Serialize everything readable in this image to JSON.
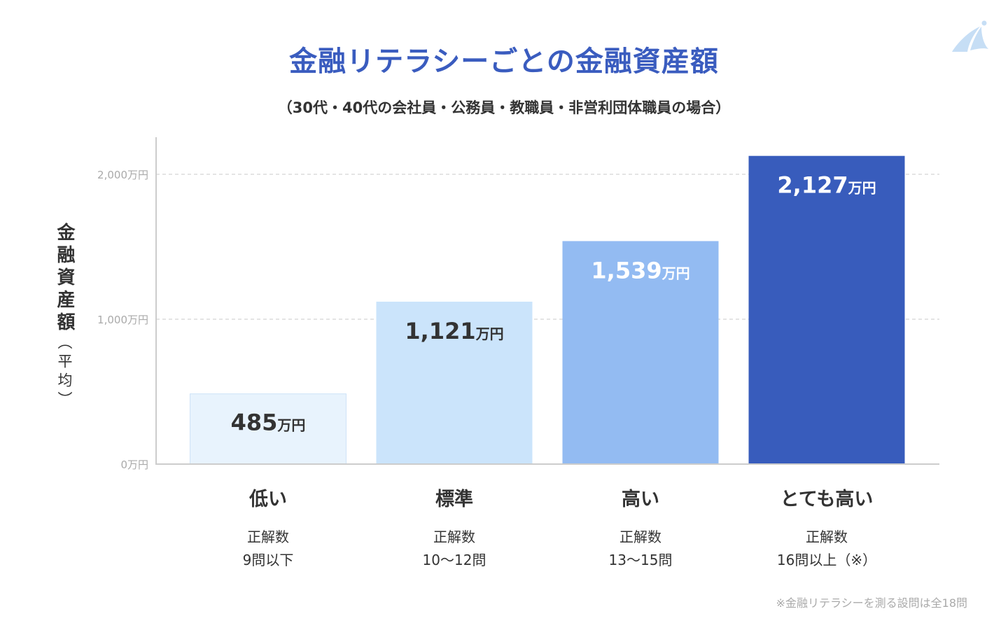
{
  "title": "金融リテラシーごとの金融資産額",
  "subtitle": "（30代・40代の会社員・公務員・教職員・非営利団体職員の場合）",
  "footnote": "※金融リテラシーを測る設問は全18問",
  "logo": {
    "icon": "sail-logo-icon",
    "color": "#bcd8f3"
  },
  "chart_data": {
    "type": "bar",
    "title": "金融リテラシーごとの金融資産額",
    "ylabel": "金融資産額",
    "ylabel_sub": "（平均）",
    "unit": "万円",
    "ylim": [
      0,
      2250
    ],
    "yticks": [
      0,
      1000,
      2000
    ],
    "ytick_labels": [
      "0万円",
      "1,000万円",
      "2,000万円"
    ],
    "grid": true,
    "categories": [
      "低い",
      "標準",
      "高い",
      "とても高い"
    ],
    "category_details": [
      [
        "正解数",
        "9問以下"
      ],
      [
        "正解数",
        "10〜12問"
      ],
      [
        "正解数",
        "13〜15問"
      ],
      [
        "正解数",
        "16問以上（※）"
      ]
    ],
    "values": [
      485,
      1121,
      1539,
      2127
    ],
    "value_labels": [
      "485",
      "1,121",
      "1,539",
      "2,127"
    ],
    "colors": [
      "#e8f3fd",
      "#cbe4fb",
      "#93bbf2",
      "#385cbc"
    ],
    "label_colors": [
      "#333333",
      "#333333",
      "#ffffff",
      "#ffffff"
    ]
  }
}
